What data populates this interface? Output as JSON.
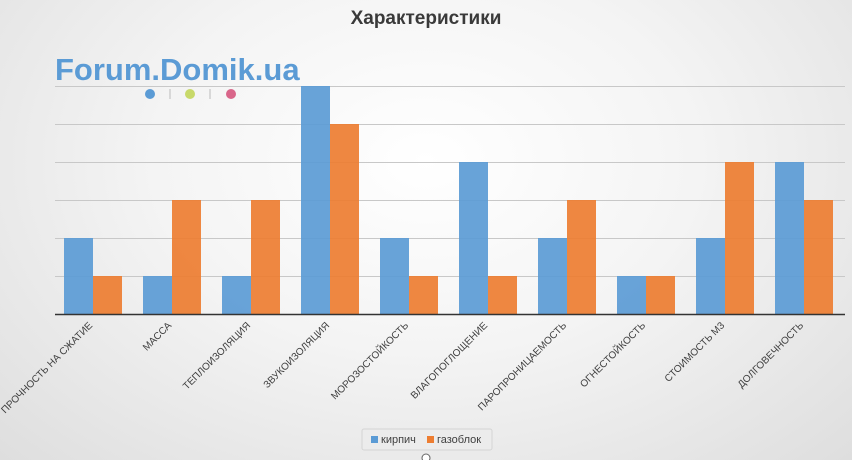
{
  "watermark": "Forum.Domik.ua",
  "colors": {
    "kirpich": "#5b9bd5",
    "gazoblok": "#ed7d31",
    "wm_dot_1": "#5b9bd5",
    "wm_dot_2": "#c8d96a",
    "wm_dot_3": "#d9668a",
    "gridline": "#c8c8c8",
    "axis": "#333333"
  },
  "chart_data": {
    "type": "bar",
    "title": "Характеристики",
    "xlabel": "",
    "ylabel": "",
    "ylim": [
      0,
      6
    ],
    "grid": true,
    "legend_position": "bottom",
    "categories": [
      "ПРОЧНОСТЬ НА СЖАТИЕ",
      "МАССА",
      "ТЕПЛОИЗОЛЯЦИЯ",
      "ЗВУКОИЗОЛЯЦИЯ",
      "МОРОЗОСТОЙКОСТЬ",
      "ВЛАГОПОГЛОЩЕНИЕ",
      "ПАРОПРОНИЦАЕМОСТЬ",
      "ОГНЕСТОЙКОСТЬ",
      "СТОИМОСТЬ М3",
      "ДОЛГОВЕЧНОСТЬ"
    ],
    "series": [
      {
        "name": "кирпич",
        "values": [
          2,
          1,
          1,
          6,
          2,
          4,
          2,
          1,
          2,
          4
        ]
      },
      {
        "name": "газоблок",
        "values": [
          1,
          3,
          3,
          5,
          1,
          1,
          3,
          1,
          4,
          3
        ]
      }
    ]
  }
}
